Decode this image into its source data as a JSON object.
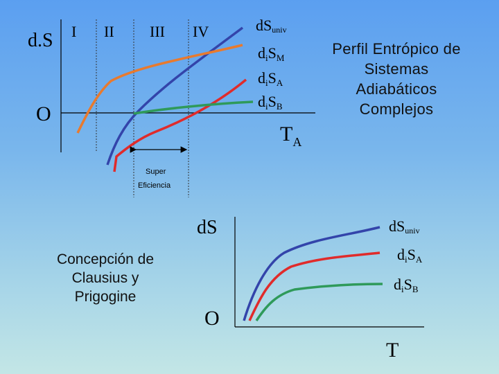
{
  "title_lines": [
    "Perfil Entrópico de",
    "Sistemas",
    "Adiabáticos",
    "Complejos"
  ],
  "caption_lines": [
    "Concepción de",
    "Clausius y",
    "Prigogine"
  ],
  "top_diagram": {
    "y_axis_label": "d.S",
    "origin_label": "O",
    "x_axis_label": {
      "main": "T",
      "sub": "A"
    },
    "regions": [
      "I",
      "II",
      "III",
      "IV"
    ],
    "range_label": [
      "Super",
      "Eficiencia"
    ],
    "curves": [
      {
        "main": "dS",
        "sub": "univ",
        "color": "#3344aa"
      },
      {
        "main": "d",
        "sub1": "i",
        "mid": "S",
        "sub2": "M",
        "color": "#e87a2e"
      },
      {
        "main": "d",
        "sub1": "i",
        "mid": "S",
        "sub2": "A",
        "color": "#e02b2b"
      },
      {
        "main": "d",
        "sub1": "i",
        "mid": "S",
        "sub2": "B",
        "color": "#2f9a5a"
      }
    ]
  },
  "bottom_diagram": {
    "y_axis_label": "dS",
    "origin_label": "O",
    "x_axis_label": "T",
    "curves": [
      {
        "main": "dS",
        "sub": "univ",
        "color": "#3344aa"
      },
      {
        "main": "d",
        "sub1": "i",
        "mid": "S",
        "sub2": "A",
        "color": "#e02b2b"
      },
      {
        "main": "d",
        "sub1": "i",
        "mid": "S",
        "sub2": "B",
        "color": "#2f9a5a"
      }
    ]
  }
}
